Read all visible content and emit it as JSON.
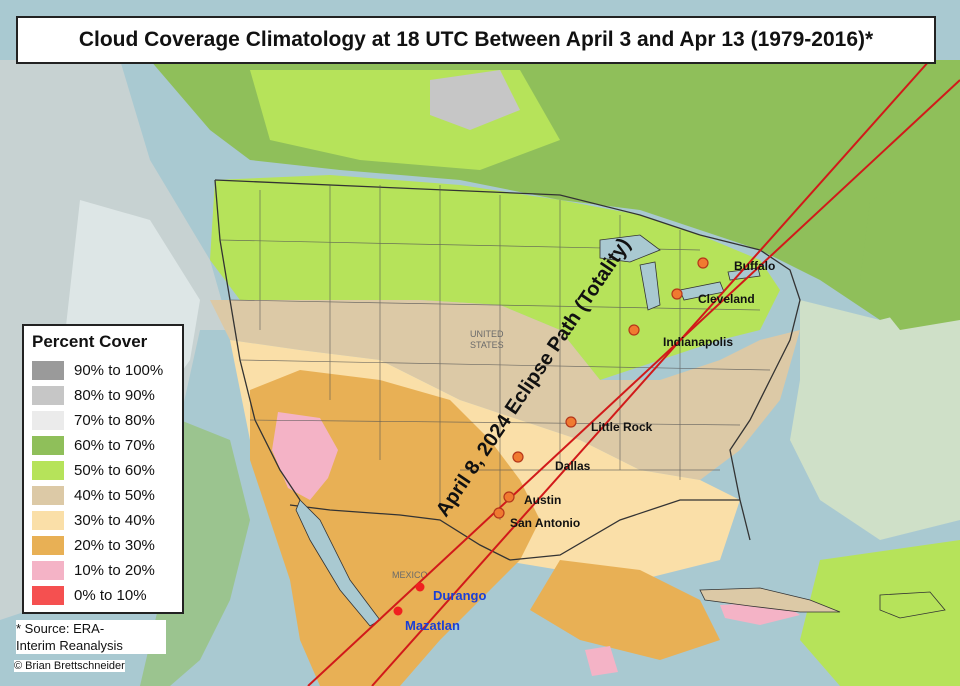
{
  "title": "Cloud Coverage Climatology at 18 UTC Between April 3 and Apr 13 (1979-2016)*",
  "legend": {
    "title": "Percent Cover",
    "items": [
      {
        "label": "90% to 100%",
        "color": "#9a9a9a"
      },
      {
        "label": "80% to 90%",
        "color": "#c6c6c6"
      },
      {
        "label": "70% to 80%",
        "color": "#ebebeb"
      },
      {
        "label": "60% to 70%",
        "color": "#8fbf5a"
      },
      {
        "label": "50% to 60%",
        "color": "#b6e35a"
      },
      {
        "label": "40% to 50%",
        "color": "#dcc9a6"
      },
      {
        "label": "30% to 40%",
        "color": "#fadfa8"
      },
      {
        "label": "20% to 30%",
        "color": "#e8b055"
      },
      {
        "label": "10% to 20%",
        "color": "#f4b3c6"
      },
      {
        "label": "0% to 10%",
        "color": "#f55050"
      }
    ]
  },
  "source": {
    "line1": "* Source: ERA-",
    "line2": "Interim Reanalysis"
  },
  "copyright": "© Brian Brettschneider",
  "eclipse_label": "April 8, 2024 Eclipse Path (Totality)",
  "cities": [
    {
      "name": "Buffalo"
    },
    {
      "name": "Cleveland"
    },
    {
      "name": "Indianapolis"
    },
    {
      "name": "Little Rock"
    },
    {
      "name": "Dallas"
    },
    {
      "name": "Austin"
    },
    {
      "name": "San Antonio"
    },
    {
      "name": "Durango"
    },
    {
      "name": "Mazatlan"
    }
  ],
  "basemap_labels": {
    "united_states": "UNITED",
    "states": "STATES",
    "mexico": "MEXICO"
  }
}
